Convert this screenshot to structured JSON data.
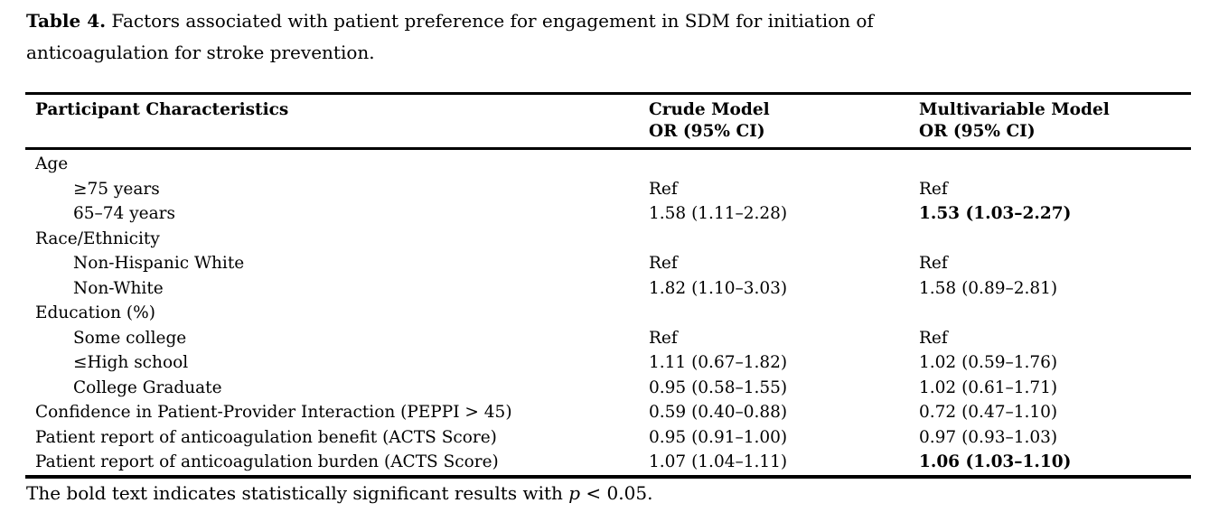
{
  "page": {
    "background_color": "#ffffff",
    "text_color": "#000000",
    "rule_color": "#000000"
  },
  "title": {
    "label": "Table 4.",
    "line1": " Factors associated with patient preference for engagement in SDM for initiation of",
    "line2": "anticoagulation for stroke prevention."
  },
  "table": {
    "columns": [
      {
        "header": "Participant Characteristics",
        "subheader": ""
      },
      {
        "header": "Crude Model",
        "subheader": "OR (95% CI)"
      },
      {
        "header": "Multivariable Model",
        "subheader": "OR (95% CI)"
      }
    ],
    "rows": [
      {
        "label": "Age",
        "indent": 0,
        "crude": "",
        "multi": "",
        "multi_bold": false
      },
      {
        "label": "≥75 years",
        "indent": 1,
        "crude": "Ref",
        "multi": "Ref",
        "multi_bold": false
      },
      {
        "label": "65–74 years",
        "indent": 1,
        "crude": "1.58 (1.11–2.28)",
        "multi": "1.53 (1.03–2.27)",
        "multi_bold": true
      },
      {
        "label": "Race/Ethnicity",
        "indent": 0,
        "crude": "",
        "multi": "",
        "multi_bold": false
      },
      {
        "label": "Non-Hispanic White",
        "indent": 1,
        "crude": "Ref",
        "multi": "Ref",
        "multi_bold": false
      },
      {
        "label": "Non-White",
        "indent": 1,
        "crude": "1.82 (1.10–3.03)",
        "multi": "1.58 (0.89–2.81)",
        "multi_bold": false
      },
      {
        "label": "Education (%)",
        "indent": 0,
        "crude": "",
        "multi": "",
        "multi_bold": false
      },
      {
        "label": "Some college",
        "indent": 1,
        "crude": "Ref",
        "multi": "Ref",
        "multi_bold": false
      },
      {
        "label": "≤High school",
        "indent": 1,
        "crude": "1.11 (0.67–1.82)",
        "multi": "1.02 (0.59–1.76)",
        "multi_bold": false
      },
      {
        "label": "College Graduate",
        "indent": 1,
        "crude": "0.95 (0.58–1.55)",
        "multi": "1.02 (0.61–1.71)",
        "multi_bold": false
      },
      {
        "label": "Confidence in Patient-Provider Interaction (PEPPI > 45)",
        "indent": 0,
        "crude": "0.59 (0.40–0.88)",
        "multi": "0.72 (0.47–1.10)",
        "multi_bold": false
      },
      {
        "label": "Patient report of anticoagulation benefit (ACTS Score)",
        "indent": 0,
        "crude": "0.95 (0.91–1.00)",
        "multi": "0.97 (0.93–1.03)",
        "multi_bold": false
      },
      {
        "label": "Patient report of anticoagulation burden (ACTS Score)",
        "indent": 0,
        "crude": "1.07 (1.04–1.11)",
        "multi": "1.06 (1.03–1.10)",
        "multi_bold": true
      }
    ]
  },
  "footnote": {
    "prefix": "The bold text indicates statistically significant results with ",
    "italic": "p",
    "suffix": " < 0.05."
  }
}
